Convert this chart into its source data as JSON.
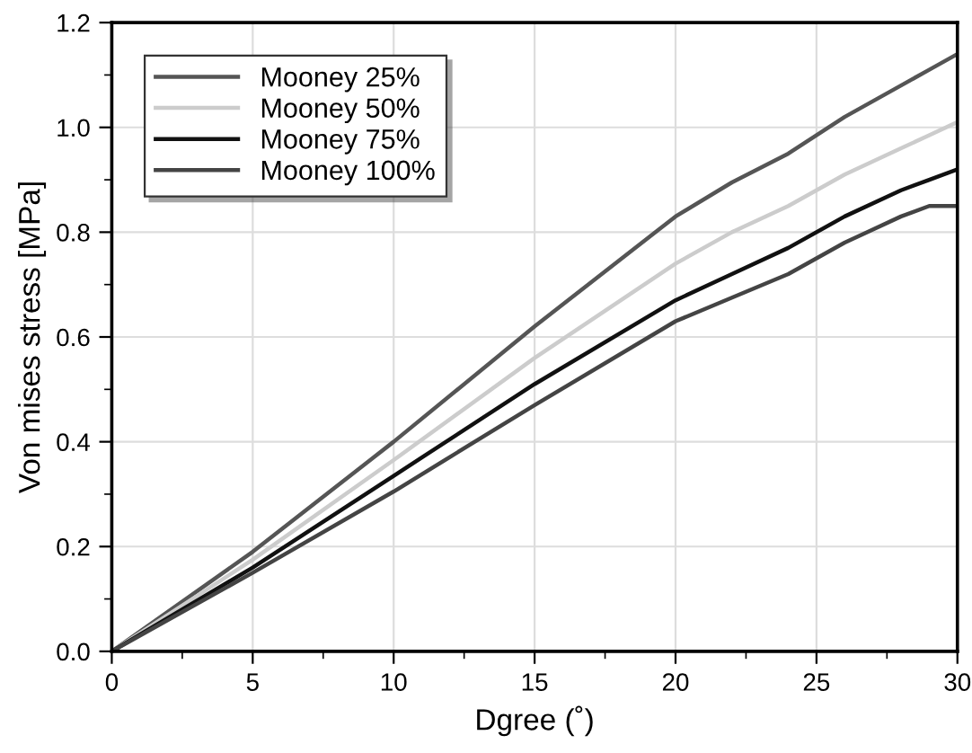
{
  "chart_data": {
    "type": "line",
    "xlabel": "Dgree (˚)",
    "ylabel": "Von mises stress [MPa]",
    "x": [
      0,
      5,
      10,
      15,
      20,
      22,
      24,
      26,
      28,
      29,
      30
    ],
    "series": [
      {
        "name": "Mooney 25%",
        "color": "#555555",
        "values": [
          0,
          0.19,
          0.4,
          0.62,
          0.83,
          0.895,
          0.95,
          1.02,
          1.08,
          1.11,
          1.14
        ]
      },
      {
        "name": "Mooney 50%",
        "color": "#cccccc",
        "values": [
          0,
          0.175,
          0.365,
          0.56,
          0.74,
          0.8,
          0.85,
          0.91,
          0.96,
          0.985,
          1.01
        ]
      },
      {
        "name": "Mooney 75%",
        "color": "#111111",
        "values": [
          0,
          0.16,
          0.335,
          0.51,
          0.67,
          0.72,
          0.77,
          0.83,
          0.88,
          0.9,
          0.92
        ]
      },
      {
        "name": "Mooney 100%",
        "color": "#444444",
        "values": [
          0,
          0.15,
          0.305,
          0.47,
          0.63,
          0.675,
          0.72,
          0.78,
          0.83,
          0.85,
          0.85
        ]
      }
    ],
    "xlim": [
      0,
      30
    ],
    "xticks": [
      0,
      5,
      10,
      15,
      20,
      25,
      30
    ],
    "ylim": [
      0,
      1.2
    ],
    "yticks": [
      {
        "value": 0,
        "label": "0.0"
      },
      {
        "value": 0.2,
        "label": "0.2"
      },
      {
        "value": 0.4,
        "label": "0.4"
      },
      {
        "value": 0.6,
        "label": "0.6"
      },
      {
        "value": 0.8,
        "label": "0.8"
      },
      {
        "value": 1.0,
        "label": "1.0"
      },
      {
        "value": 1.2,
        "label": "1.2"
      }
    ],
    "grid": true,
    "legend": "top left",
    "marker": "none",
    "line_style": "solid"
  }
}
